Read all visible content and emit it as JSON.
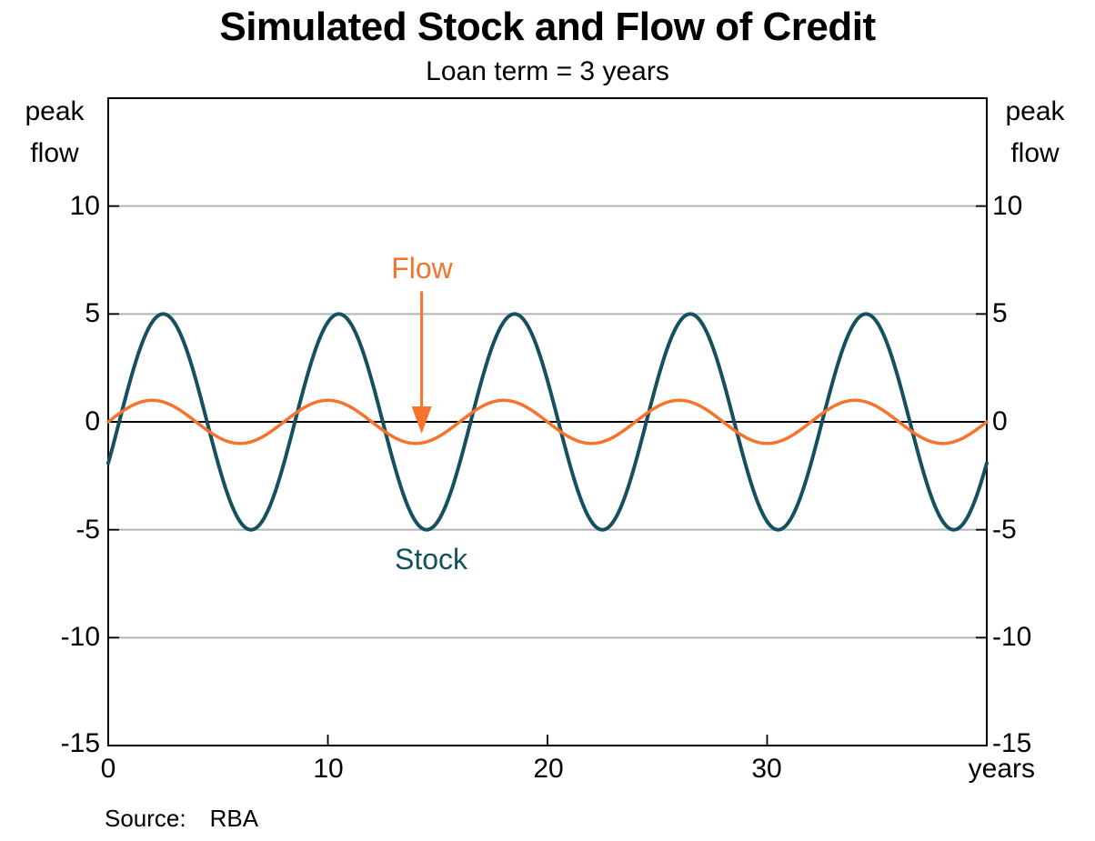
{
  "title": "Simulated Stock and Flow of Credit",
  "subtitle": "Loan term = 3 years",
  "source": {
    "label": "Source:",
    "value": "RBA"
  },
  "chart_data": {
    "type": "line",
    "title": "Simulated Stock and Flow of Credit",
    "subtitle": "Loan term = 3 years",
    "x_axis": {
      "label": "years",
      "range": [
        0,
        40
      ],
      "ticks": [
        0,
        10,
        20,
        30
      ],
      "tick_labels": [
        "0",
        "10",
        "20",
        "30"
      ]
    },
    "y_axis": {
      "unit_label_lines": [
        "peak",
        "flow"
      ],
      "unit_label_sides": "both",
      "range": [
        -15,
        15
      ],
      "ticks": [
        10,
        5,
        0,
        -5,
        -10,
        -15
      ],
      "tick_labels": [
        "10",
        "5",
        "0",
        "-5",
        "-10",
        "-15"
      ],
      "gridline_values": [
        10,
        5,
        -5,
        -10
      ],
      "zero_line_value": 0
    },
    "grid": "horizontal-only",
    "legend_position": "none (series labeled by on-chart annotations)",
    "series": [
      {
        "name": "Stock",
        "color": "#15505F",
        "line_width": 4,
        "shape": "sine",
        "amplitude": 5,
        "period_years": 8,
        "phase_shift_years": 0.5,
        "equation": "stock(t) = 5 * sin(2*pi*(t - 0.5)/8)",
        "key_points": {
          "value_at_t0": -1.91,
          "peak_value": 5,
          "trough_value": -5,
          "peaks_t": [
            2.5,
            10.5,
            18.5,
            26.5,
            34.5
          ],
          "troughs_t": [
            6.5,
            14.5,
            22.5,
            30.5,
            38.5
          ],
          "zero_upcrossings_t": [
            0.5,
            8.5,
            16.5,
            24.5,
            32.5
          ]
        }
      },
      {
        "name": "Flow",
        "color": "#F7722B",
        "line_width": 3.5,
        "shape": "sine",
        "amplitude": 1,
        "period_years": 8,
        "phase_shift_years": 0,
        "equation": "flow(t) = 1 * sin(2*pi*t/8)",
        "key_points": {
          "value_at_t0": 0,
          "peak_value": 1,
          "trough_value": -1,
          "peaks_t": [
            2,
            10,
            18,
            26,
            34
          ],
          "troughs_t": [
            6,
            14,
            22,
            30,
            38
          ],
          "zero_upcrossings_t": [
            0,
            8,
            16,
            24,
            32,
            40
          ]
        }
      }
    ],
    "annotations": [
      {
        "text": "Flow",
        "color": "#F7722B",
        "label_x_years": 14.3,
        "label_y": 7.1,
        "arrow": {
          "x_years": 14.27,
          "from_y": 6.05,
          "to_y": -0.55
        }
      },
      {
        "text": "Stock",
        "color": "#15505F",
        "label_x_years": 14.7,
        "label_y": -6.4
      }
    ],
    "colors": {
      "grid": "#B3B3B3",
      "axis": "#000000",
      "background": "#FFFFFF"
    }
  }
}
